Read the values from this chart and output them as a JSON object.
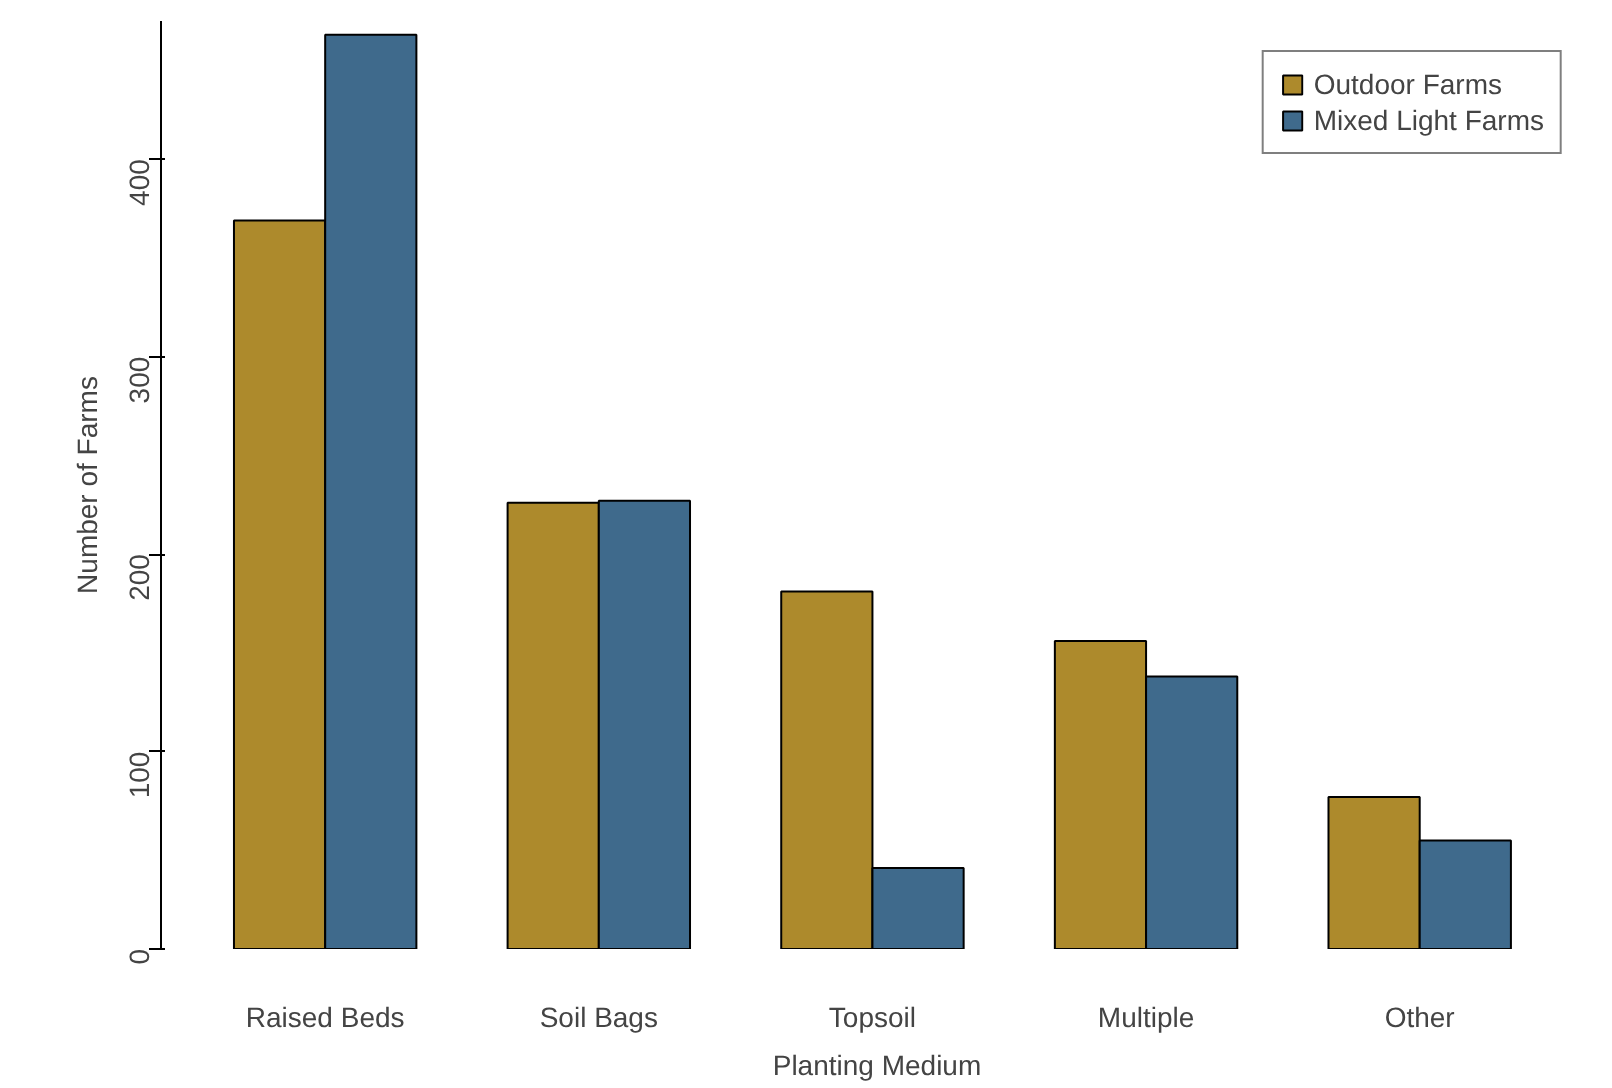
{
  "chart_data": {
    "type": "bar",
    "xlabel": "Planting Medium",
    "ylabel": "Number of Farms",
    "categories": [
      "Raised Beds",
      "Soil Bags",
      "Topsoil",
      "Multiple",
      "Other"
    ],
    "series": [
      {
        "name": "Outdoor Farms",
        "color": "#ad8a2c",
        "values": [
          369,
          226,
          181,
          156,
          77
        ]
      },
      {
        "name": "Mixed Light Farms",
        "color": "#3f6a8c",
        "values": [
          463,
          227,
          41,
          138,
          55
        ]
      }
    ],
    "ylim": [
      0,
      470
    ],
    "yticks": [
      0,
      100,
      200,
      300,
      400
    ],
    "grid": false,
    "legend": "top right"
  }
}
